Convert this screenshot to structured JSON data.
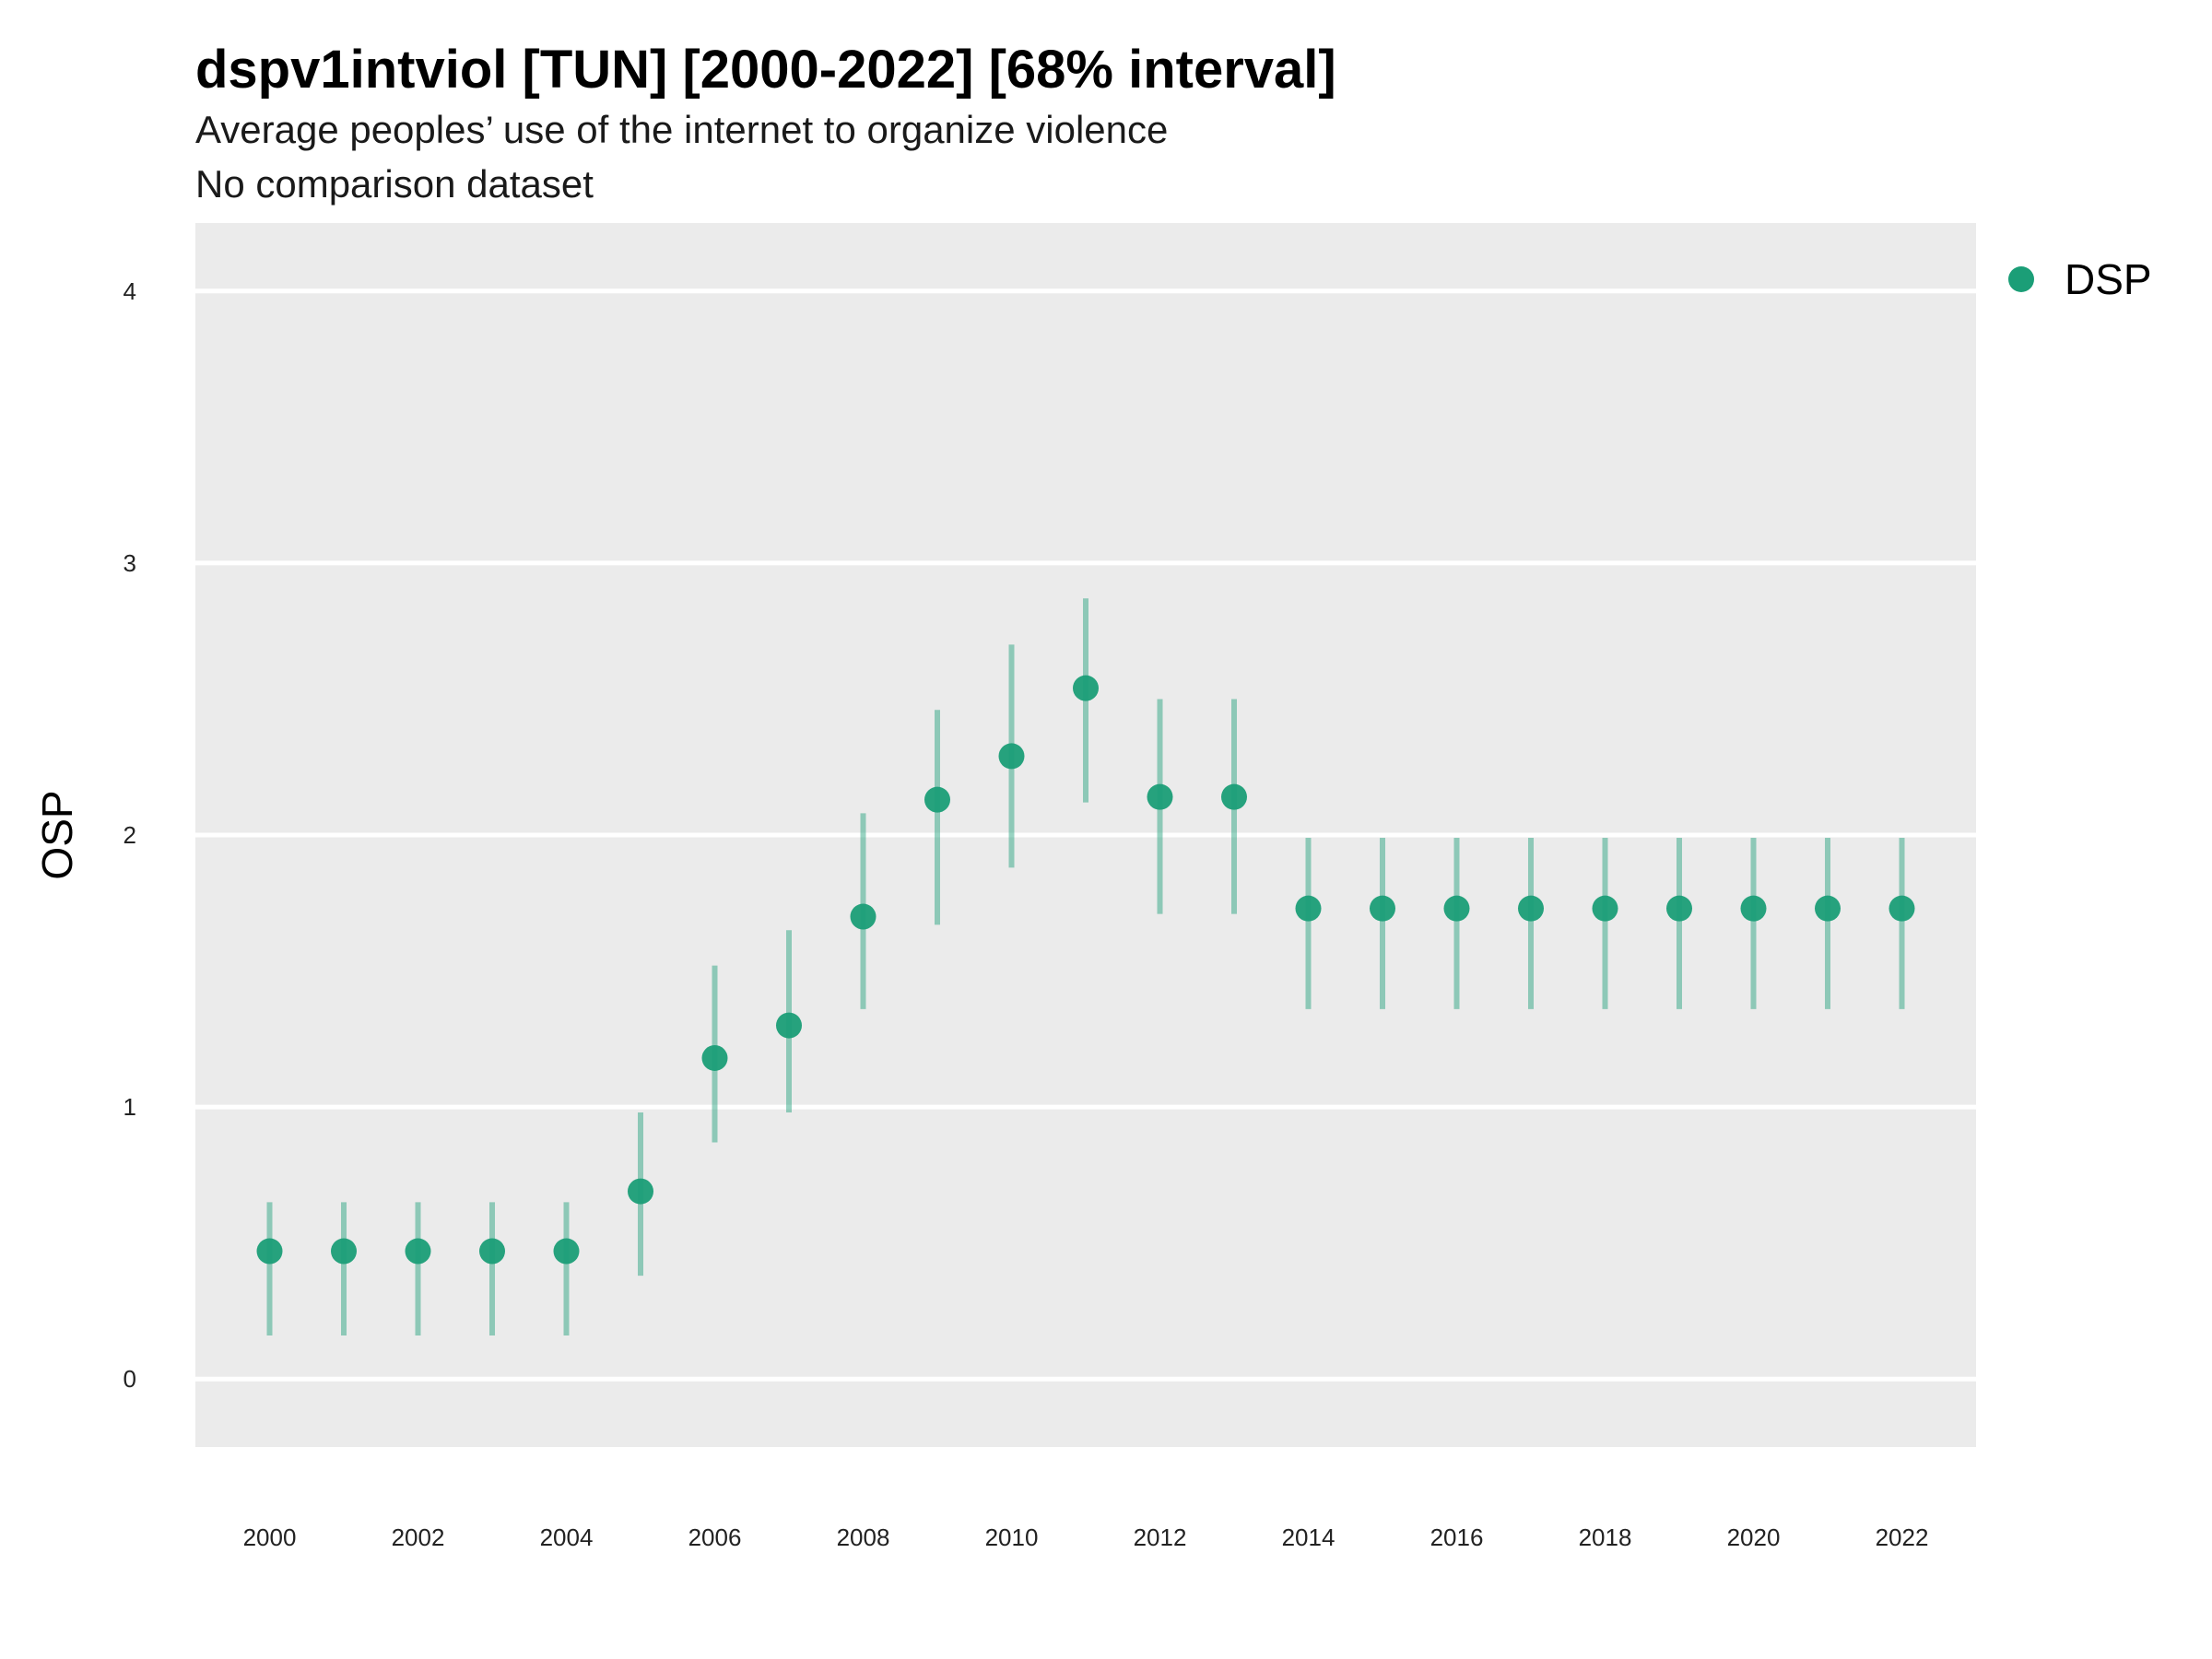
{
  "chart_data": {
    "type": "scatter",
    "title": "dspv1intviol [TUN] [2000-2022] [68% interval]",
    "subtitle_lines": [
      "Average peoples’ use of the internet to organize violence",
      "No comparison dataset"
    ],
    "xlabel": "",
    "ylabel": "OSP",
    "ylim": [
      -0.25,
      4.25
    ],
    "xlim": [
      1999,
      2023
    ],
    "y_ticks": [
      "0",
      "1",
      "2",
      "3",
      "4"
    ],
    "x_ticks": [
      "2000",
      "2002",
      "2004",
      "2006",
      "2008",
      "2010",
      "2012",
      "2014",
      "2016",
      "2018",
      "2020",
      "2022"
    ],
    "grid": true,
    "legend_position": "top-right",
    "series": [
      {
        "name": "DSP",
        "color": "#1b9e77",
        "x": [
          2000,
          2001,
          2002,
          2003,
          2004,
          2005,
          2006,
          2007,
          2008,
          2009,
          2010,
          2011,
          2012,
          2013,
          2014,
          2015,
          2016,
          2017,
          2018,
          2019,
          2020,
          2021,
          2022
        ],
        "y": [
          0.47,
          0.47,
          0.47,
          0.47,
          0.47,
          0.69,
          1.18,
          1.3,
          1.7,
          2.13,
          2.29,
          2.54,
          2.14,
          2.14,
          1.73,
          1.73,
          1.73,
          1.73,
          1.73,
          1.73,
          1.73,
          1.73,
          1.73
        ],
        "lower": [
          0.16,
          0.16,
          0.16,
          0.16,
          0.16,
          0.38,
          0.87,
          0.98,
          1.36,
          1.67,
          1.88,
          2.12,
          1.71,
          1.71,
          1.36,
          1.36,
          1.36,
          1.36,
          1.36,
          1.36,
          1.36,
          1.36,
          1.36
        ],
        "upper": [
          0.65,
          0.65,
          0.65,
          0.65,
          0.65,
          0.98,
          1.52,
          1.65,
          2.08,
          2.46,
          2.7,
          2.87,
          2.5,
          2.5,
          1.99,
          1.99,
          1.99,
          1.99,
          1.99,
          1.99,
          1.99,
          1.99,
          1.99
        ]
      }
    ]
  }
}
